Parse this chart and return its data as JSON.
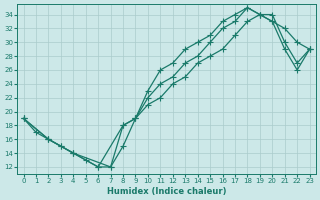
{
  "xlabel": "Humidex (Indice chaleur)",
  "bg_color": "#cce8e8",
  "line_color": "#1a7a6a",
  "grid_color": "#aacccc",
  "xlim": [
    -0.5,
    23.5
  ],
  "ylim": [
    11,
    35.5
  ],
  "xticks": [
    0,
    1,
    2,
    3,
    4,
    5,
    6,
    7,
    8,
    9,
    10,
    11,
    12,
    13,
    14,
    15,
    16,
    17,
    18,
    19,
    20,
    21,
    22,
    23
  ],
  "yticks": [
    12,
    14,
    16,
    18,
    20,
    22,
    24,
    26,
    28,
    30,
    32,
    34
  ],
  "line1_x": [
    0,
    1,
    2,
    3,
    4,
    5,
    6,
    7,
    8,
    9,
    10,
    11,
    12,
    13,
    14,
    15,
    16,
    17,
    18,
    19,
    20,
    21,
    22,
    23
  ],
  "line1_y": [
    19,
    17,
    16,
    15,
    14,
    13,
    12,
    12,
    18,
    19,
    23,
    26,
    27,
    29,
    30,
    31,
    33,
    34,
    35,
    34,
    33,
    32,
    30,
    29
  ],
  "line2_x": [
    0,
    2,
    3,
    4,
    7,
    8,
    9,
    10,
    11,
    12,
    13,
    14,
    15,
    16,
    17,
    18,
    19,
    20,
    21,
    22,
    23
  ],
  "line2_y": [
    19,
    16,
    15,
    14,
    12,
    15,
    19,
    22,
    24,
    25,
    27,
    28,
    30,
    32,
    33,
    35,
    34,
    33,
    29,
    26,
    29
  ],
  "line3_x": [
    0,
    2,
    4,
    6,
    8,
    9,
    10,
    11,
    12,
    13,
    14,
    15,
    16,
    17,
    18,
    19,
    20,
    21,
    22,
    23
  ],
  "line3_y": [
    19,
    16,
    14,
    12,
    18,
    19,
    21,
    22,
    24,
    25,
    27,
    28,
    29,
    31,
    33,
    34,
    34,
    30,
    27,
    29
  ]
}
